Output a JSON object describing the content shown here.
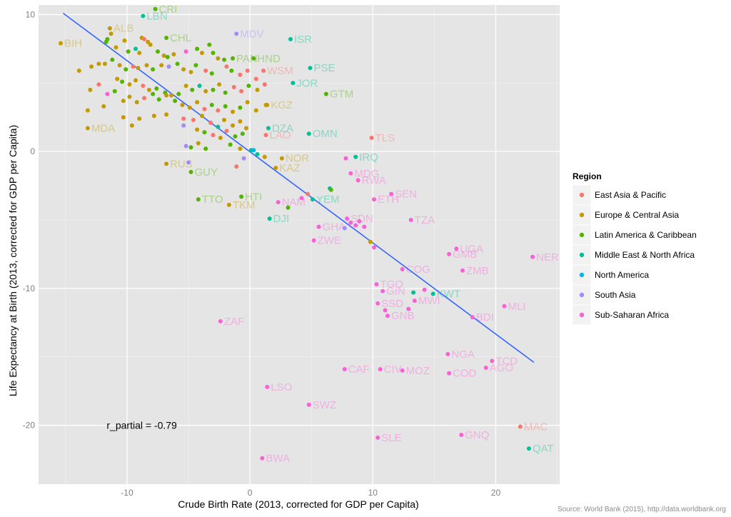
{
  "chart_data": {
    "type": "scatter",
    "xlabel": "Crude Birth Rate (2013, corrected for GDP per Capita)",
    "ylabel": "Life Expectancy at Birth (2013, corrected for GDP per Capita)",
    "xlim": [
      -17.2,
      25.2
    ],
    "ylim": [
      -24.3,
      10.7
    ],
    "xticks": [
      -10,
      0,
      10,
      20
    ],
    "yticks": [
      -20,
      -10,
      0,
      10
    ],
    "grid": true,
    "legend_position": "right",
    "legend_title": "Region",
    "regions": [
      {
        "name": "East Asia & Pacific",
        "color": "#F8766D"
      },
      {
        "name": "Europe & Central Asia",
        "color": "#C49A00"
      },
      {
        "name": "Latin America & Caribbean",
        "color": "#53B400"
      },
      {
        "name": "Middle East & North Africa",
        "color": "#00C094"
      },
      {
        "name": "North America",
        "color": "#00B6EB"
      },
      {
        "name": "South Asia",
        "color": "#A58AFF"
      },
      {
        "name": "Sub-Saharan Africa",
        "color": "#FB61D7"
      }
    ],
    "trend_line": {
      "x": [
        -15.2,
        23.1
      ],
      "y": [
        10.1,
        -15.4
      ],
      "color": "#3366FF"
    },
    "annotation": {
      "text": "r_partial =  -0.79",
      "x": -8.8,
      "y": -20
    },
    "source": "Source: World Bank (2015), http://data.worldbank.org",
    "labeled_points": [
      {
        "label": "CRI",
        "x": -7.7,
        "y": 10.4,
        "region": 2
      },
      {
        "label": "LBN",
        "x": -8.7,
        "y": 9.9,
        "region": 3
      },
      {
        "label": "ALB",
        "x": -11.4,
        "y": 9.0,
        "region": 1
      },
      {
        "label": "BIH",
        "x": -15.4,
        "y": 7.9,
        "region": 1
      },
      {
        "label": "CHL",
        "x": -6.8,
        "y": 8.3,
        "region": 2
      },
      {
        "label": "MDV",
        "x": -1.1,
        "y": 8.6,
        "region": 5
      },
      {
        "label": "ISR",
        "x": 3.3,
        "y": 8.2,
        "region": 3
      },
      {
        "label": "PAN",
        "x": -1.4,
        "y": 6.8,
        "region": 2
      },
      {
        "label": "HND",
        "x": 0.3,
        "y": 6.8,
        "region": 2
      },
      {
        "label": "WSM",
        "x": 1.1,
        "y": 5.9,
        "region": 0
      },
      {
        "label": "PSE",
        "x": 4.9,
        "y": 6.1,
        "region": 3
      },
      {
        "label": "JOR",
        "x": 3.5,
        "y": 5.0,
        "region": 3
      },
      {
        "label": "GTM",
        "x": 6.2,
        "y": 4.2,
        "region": 2
      },
      {
        "label": "KGZ",
        "x": 1.4,
        "y": 3.4,
        "region": 1
      },
      {
        "label": "MDA",
        "x": -13.2,
        "y": 1.7,
        "region": 1
      },
      {
        "label": "DZA",
        "x": 1.5,
        "y": 1.7,
        "region": 3
      },
      {
        "label": "LAO",
        "x": 1.3,
        "y": 1.2,
        "region": 0
      },
      {
        "label": "TLS",
        "x": 9.9,
        "y": 1.0,
        "region": 0
      },
      {
        "label": "OMN",
        "x": 4.8,
        "y": 1.3,
        "region": 3
      },
      {
        "label": "IRQ",
        "x": 8.6,
        "y": -0.4,
        "region": 3
      },
      {
        "label": "NOR",
        "x": 2.6,
        "y": -0.5,
        "region": 1
      },
      {
        "label": "KAZ",
        "x": 2.1,
        "y": -1.2,
        "region": 1
      },
      {
        "label": "RUS",
        "x": -6.8,
        "y": -0.9,
        "region": 1
      },
      {
        "label": "GUY",
        "x": -4.8,
        "y": -1.5,
        "region": 2
      },
      {
        "label": "MDG",
        "x": 8.2,
        "y": -1.6,
        "region": 6
      },
      {
        "label": "RWA",
        "x": 8.8,
        "y": -2.1,
        "region": 6
      },
      {
        "label": "SEN",
        "x": 11.5,
        "y": -3.1,
        "region": 6
      },
      {
        "label": "TTO",
        "x": -4.2,
        "y": -3.5,
        "region": 2
      },
      {
        "label": "HTI",
        "x": -0.7,
        "y": -3.3,
        "region": 2
      },
      {
        "label": "TKM",
        "x": -1.7,
        "y": -3.9,
        "region": 1
      },
      {
        "label": "NAM",
        "x": 2.3,
        "y": -3.7,
        "region": 6
      },
      {
        "label": "YEM",
        "x": 5.1,
        "y": -3.5,
        "region": 3
      },
      {
        "label": "ETH",
        "x": 10.1,
        "y": -3.5,
        "region": 6
      },
      {
        "label": "DJI",
        "x": 1.6,
        "y": -4.9,
        "region": 3
      },
      {
        "label": "TZA",
        "x": 13.1,
        "y": -5.0,
        "region": 6
      },
      {
        "label": "GHA",
        "x": 5.6,
        "y": -5.5,
        "region": 6
      },
      {
        "label": "ZWE",
        "x": 5.2,
        "y": -6.5,
        "region": 6
      },
      {
        "label": "SDN",
        "x": 7.9,
        "y": -4.9,
        "region": 6
      },
      {
        "label": "UGA",
        "x": 16.8,
        "y": -7.1,
        "region": 6
      },
      {
        "label": "GMB",
        "x": 16.2,
        "y": -7.5,
        "region": 6
      },
      {
        "label": "NER",
        "x": 23.0,
        "y": -7.7,
        "region": 6
      },
      {
        "label": "COG",
        "x": 12.4,
        "y": -8.6,
        "region": 6
      },
      {
        "label": "ZMB",
        "x": 17.3,
        "y": -8.7,
        "region": 6
      },
      {
        "label": "TGO",
        "x": 10.3,
        "y": -9.7,
        "region": 6
      },
      {
        "label": "GIN",
        "x": 10.8,
        "y": -10.2,
        "region": 6
      },
      {
        "label": "KWT",
        "x": 14.9,
        "y": -10.4,
        "region": 3
      },
      {
        "label": "MWI",
        "x": 13.4,
        "y": -10.9,
        "region": 6
      },
      {
        "label": "SSD",
        "x": 10.4,
        "y": -11.1,
        "region": 6
      },
      {
        "label": "GNB",
        "x": 11.2,
        "y": -12.0,
        "region": 6
      },
      {
        "label": "MLI",
        "x": 20.7,
        "y": -11.3,
        "region": 6
      },
      {
        "label": "BDI",
        "x": 18.1,
        "y": -12.1,
        "region": 6
      },
      {
        "label": "ZAF",
        "x": -2.4,
        "y": -12.4,
        "region": 6
      },
      {
        "label": "NGA",
        "x": 16.1,
        "y": -14.8,
        "region": 6
      },
      {
        "label": "TCD",
        "x": 19.7,
        "y": -15.3,
        "region": 6
      },
      {
        "label": "AGO",
        "x": 19.2,
        "y": -15.8,
        "region": 6
      },
      {
        "label": "CAF",
        "x": 7.7,
        "y": -15.9,
        "region": 6
      },
      {
        "label": "CIV",
        "x": 10.6,
        "y": -15.9,
        "region": 6
      },
      {
        "label": "MOZ",
        "x": 12.4,
        "y": -16.0,
        "region": 6
      },
      {
        "label": "COD",
        "x": 16.2,
        "y": -16.2,
        "region": 6
      },
      {
        "label": "LSO",
        "x": 1.4,
        "y": -17.2,
        "region": 6
      },
      {
        "label": "SWZ",
        "x": 4.8,
        "y": -18.5,
        "region": 6
      },
      {
        "label": "MAC",
        "x": 22.0,
        "y": -20.1,
        "region": 0
      },
      {
        "label": "GNQ",
        "x": 17.2,
        "y": -20.7,
        "region": 6
      },
      {
        "label": "SLE",
        "x": 10.4,
        "y": -20.9,
        "region": 6
      },
      {
        "label": "QAT",
        "x": 22.7,
        "y": -21.7,
        "region": 3
      },
      {
        "label": "BWA",
        "x": 1.0,
        "y": -22.4,
        "region": 6
      }
    ],
    "dense_points": [
      [
        -11.6,
        8.2,
        2
      ],
      [
        -11.3,
        8.6,
        1
      ],
      [
        -11.7,
        8.0,
        2
      ],
      [
        -10.9,
        7.6,
        1
      ],
      [
        -10.2,
        8.1,
        1
      ],
      [
        -9.9,
        7.3,
        2
      ],
      [
        -9.3,
        7.5,
        3
      ],
      [
        -9.0,
        7.2,
        1
      ],
      [
        -8.8,
        8.3,
        1
      ],
      [
        -8.6,
        8.2,
        0
      ],
      [
        -8.3,
        8.0,
        1
      ],
      [
        -8.1,
        7.8,
        1
      ],
      [
        -7.5,
        7.3,
        2
      ],
      [
        -7.0,
        7.0,
        1
      ],
      [
        -6.7,
        6.9,
        2
      ],
      [
        -6.2,
        7.1,
        1
      ],
      [
        -5.2,
        7.3,
        6
      ],
      [
        -4.3,
        7.5,
        2
      ],
      [
        -3.9,
        7.2,
        1
      ],
      [
        -3.3,
        7.8,
        2
      ],
      [
        -3.0,
        7.2,
        2
      ],
      [
        -2.6,
        6.8,
        1
      ],
      [
        -2.1,
        6.7,
        2
      ],
      [
        -1.9,
        6.2,
        0
      ],
      [
        -11.8,
        6.4,
        1
      ],
      [
        -11.2,
        6.7,
        2
      ],
      [
        -10.6,
        6.3,
        1
      ],
      [
        -10.1,
        6.0,
        2
      ],
      [
        -9.5,
        6.2,
        0
      ],
      [
        -9.1,
        6.1,
        1
      ],
      [
        -8.4,
        6.3,
        1
      ],
      [
        -7.9,
        6.0,
        2
      ],
      [
        -7.2,
        6.3,
        1
      ],
      [
        -6.6,
        6.2,
        5
      ],
      [
        -5.9,
        6.4,
        2
      ],
      [
        -5.4,
        6.0,
        1
      ],
      [
        -4.8,
        5.8,
        1
      ],
      [
        -4.4,
        6.3,
        2
      ],
      [
        -3.6,
        5.9,
        0
      ],
      [
        -3.1,
        5.7,
        2
      ],
      [
        -1.5,
        5.9,
        2
      ],
      [
        -0.8,
        5.6,
        0
      ],
      [
        -0.2,
        5.9,
        0
      ],
      [
        0.5,
        5.3,
        0
      ],
      [
        -13.9,
        5.9,
        1
      ],
      [
        -12.9,
        6.2,
        1
      ],
      [
        -12.3,
        6.4,
        1
      ],
      [
        -10.8,
        5.3,
        1
      ],
      [
        -10.4,
        5.1,
        2
      ],
      [
        -9.8,
        4.9,
        1
      ],
      [
        -9.3,
        5.2,
        1
      ],
      [
        -8.7,
        4.8,
        0
      ],
      [
        -8.2,
        4.5,
        1
      ],
      [
        -7.6,
        4.6,
        2
      ],
      [
        -6.9,
        4.3,
        2
      ],
      [
        -6.4,
        4.1,
        1
      ],
      [
        -5.8,
        4.2,
        2
      ],
      [
        -5.2,
        4.8,
        1
      ],
      [
        -4.7,
        4.5,
        2
      ],
      [
        -4.1,
        4.8,
        3
      ],
      [
        -3.6,
        4.4,
        1
      ],
      [
        -3.0,
        4.5,
        2
      ],
      [
        -2.5,
        4.9,
        1
      ],
      [
        -2.0,
        4.3,
        2
      ],
      [
        -1.3,
        4.7,
        0
      ],
      [
        -0.7,
        4.4,
        0
      ],
      [
        -0.1,
        4.8,
        2
      ],
      [
        0.6,
        4.5,
        1
      ],
      [
        1.2,
        4.9,
        0
      ],
      [
        -13.0,
        4.5,
        1
      ],
      [
        -12.3,
        4.9,
        0
      ],
      [
        -11.6,
        4.2,
        6
      ],
      [
        -11.0,
        4.4,
        2
      ],
      [
        -10.3,
        3.7,
        1
      ],
      [
        -9.8,
        4.0,
        1
      ],
      [
        -9.2,
        3.6,
        1
      ],
      [
        -8.6,
        3.9,
        0
      ],
      [
        -7.9,
        4.2,
        2
      ],
      [
        -7.4,
        3.8,
        2
      ],
      [
        -6.8,
        4.1,
        1
      ],
      [
        -6.1,
        3.7,
        2
      ],
      [
        -5.5,
        3.4,
        1
      ],
      [
        -4.9,
        3.2,
        1
      ],
      [
        -4.3,
        3.6,
        1
      ],
      [
        -3.7,
        3.1,
        0
      ],
      [
        -3.1,
        3.4,
        2
      ],
      [
        -2.6,
        3.0,
        0
      ],
      [
        -2.0,
        3.3,
        2
      ],
      [
        -1.4,
        2.9,
        1
      ],
      [
        -0.8,
        3.2,
        2
      ],
      [
        -0.2,
        3.6,
        1
      ],
      [
        0.5,
        3.0,
        1
      ],
      [
        1.3,
        3.4,
        1
      ],
      [
        -13.2,
        3.0,
        1
      ],
      [
        -11.9,
        3.3,
        1
      ],
      [
        -10.3,
        2.5,
        1
      ],
      [
        -9.6,
        1.9,
        1
      ],
      [
        -9.0,
        2.4,
        1
      ],
      [
        -7.8,
        2.6,
        1
      ],
      [
        -6.8,
        2.7,
        1
      ],
      [
        -5.4,
        2.4,
        0
      ],
      [
        -4.6,
        2.3,
        0
      ],
      [
        -3.9,
        2.6,
        1
      ],
      [
        -3.2,
        2.1,
        0
      ],
      [
        -2.6,
        1.8,
        3
      ],
      [
        -2.1,
        2.3,
        1
      ],
      [
        -1.4,
        1.9,
        1
      ],
      [
        -0.8,
        2.2,
        1
      ],
      [
        -0.3,
        1.7,
        1
      ],
      [
        -5.4,
        1.9,
        5
      ],
      [
        -4.3,
        1.6,
        1
      ],
      [
        -3.7,
        1.4,
        2
      ],
      [
        -3.0,
        1.2,
        0
      ],
      [
        -2.4,
        1.0,
        1
      ],
      [
        -1.9,
        1.5,
        0
      ],
      [
        -1.2,
        1.1,
        2
      ],
      [
        -0.6,
        1.3,
        2
      ],
      [
        -4.8,
        0.3,
        2
      ],
      [
        -4.2,
        0.6,
        1
      ],
      [
        -3.6,
        0.2,
        2
      ],
      [
        -5.2,
        0.4,
        5
      ],
      [
        -1.6,
        0.5,
        2
      ],
      [
        -0.8,
        0.2,
        1
      ],
      [
        0.1,
        0.1,
        3
      ],
      [
        0.6,
        -0.2,
        3
      ],
      [
        1.2,
        -0.4,
        1
      ],
      [
        -0.5,
        -0.5,
        5
      ],
      [
        -1.1,
        -1.1,
        0
      ],
      [
        -5.0,
        -0.8,
        5
      ],
      [
        0.3,
        0.1,
        4
      ],
      [
        7.8,
        -0.5,
        6
      ],
      [
        6.5,
        -2.7,
        3
      ],
      [
        6.6,
        -2.8,
        2
      ],
      [
        4.7,
        -3.1,
        0
      ],
      [
        4.2,
        -3.4,
        6
      ],
      [
        3.1,
        -4.1,
        2
      ],
      [
        8.2,
        -5.2,
        6
      ],
      [
        8.6,
        -5.4,
        6
      ],
      [
        8.9,
        -5.1,
        6
      ],
      [
        9.3,
        -5.5,
        6
      ],
      [
        7.7,
        -5.6,
        5
      ],
      [
        9.8,
        -6.6,
        1
      ],
      [
        10.1,
        -7.0,
        6
      ],
      [
        13.3,
        -10.3,
        3
      ],
      [
        14.2,
        -10.1,
        6
      ],
      [
        12.9,
        -11.5,
        6
      ],
      [
        11.0,
        -11.6,
        6
      ]
    ]
  }
}
